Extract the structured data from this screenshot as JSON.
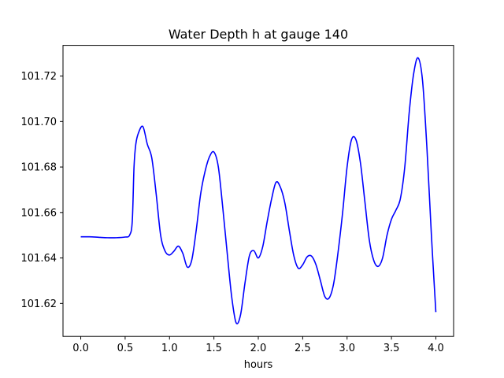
{
  "chart_data": {
    "type": "line",
    "title": "Water Depth h at gauge 140",
    "xlabel": "hours",
    "ylabel": "",
    "xlim": [
      -0.2,
      4.2
    ],
    "ylim": [
      101.6055,
      101.7335
    ],
    "xticks": [
      0.0,
      0.5,
      1.0,
      1.5,
      2.0,
      2.5,
      3.0,
      3.5,
      4.0
    ],
    "xtick_labels": [
      "0.0",
      "0.5",
      "1.0",
      "1.5",
      "2.0",
      "2.5",
      "3.0",
      "3.5",
      "4.0"
    ],
    "yticks": [
      101.62,
      101.64,
      101.66,
      101.68,
      101.7,
      101.72
    ],
    "ytick_labels": [
      "101.62",
      "101.64",
      "101.66",
      "101.68",
      "101.70",
      "101.72"
    ],
    "grid": false,
    "series": [
      {
        "color": "#0000ff",
        "x": [
          0.0,
          0.1,
          0.2,
          0.3,
          0.4,
          0.5,
          0.55,
          0.58,
          0.6,
          0.62,
          0.65,
          0.7,
          0.75,
          0.8,
          0.85,
          0.9,
          0.95,
          1.0,
          1.05,
          1.1,
          1.15,
          1.2,
          1.25,
          1.3,
          1.35,
          1.4,
          1.45,
          1.5,
          1.55,
          1.6,
          1.65,
          1.7,
          1.75,
          1.8,
          1.85,
          1.9,
          1.95,
          2.0,
          2.05,
          2.1,
          2.15,
          2.2,
          2.25,
          2.3,
          2.35,
          2.4,
          2.45,
          2.5,
          2.55,
          2.6,
          2.65,
          2.7,
          2.75,
          2.8,
          2.85,
          2.9,
          2.95,
          3.0,
          3.05,
          3.1,
          3.15,
          3.2,
          3.25,
          3.3,
          3.35,
          3.4,
          3.45,
          3.5,
          3.55,
          3.6,
          3.65,
          3.7,
          3.75,
          3.8,
          3.85,
          3.9,
          3.95,
          4.0
        ],
        "y": [
          101.6493,
          101.6493,
          101.6491,
          101.6489,
          101.6489,
          101.6492,
          101.65,
          101.656,
          101.68,
          101.69,
          101.695,
          101.6978,
          101.69,
          101.684,
          101.668,
          101.65,
          101.643,
          101.6413,
          101.643,
          101.6452,
          101.642,
          101.636,
          101.639,
          101.652,
          101.668,
          101.678,
          101.6845,
          101.6866,
          101.68,
          101.662,
          101.642,
          101.623,
          101.6115,
          101.615,
          101.629,
          101.641,
          101.6432,
          101.64,
          101.645,
          101.656,
          101.666,
          101.6733,
          101.671,
          101.664,
          101.652,
          101.641,
          101.6355,
          101.637,
          101.6405,
          101.6408,
          101.637,
          101.63,
          101.623,
          101.6225,
          101.629,
          101.643,
          101.66,
          101.68,
          101.692,
          101.692,
          101.682,
          101.665,
          101.648,
          101.639,
          101.6363,
          101.64,
          101.65,
          101.657,
          101.661,
          101.666,
          101.68,
          101.704,
          101.721,
          101.728,
          101.718,
          101.688,
          101.65,
          101.6162
        ]
      }
    ]
  }
}
